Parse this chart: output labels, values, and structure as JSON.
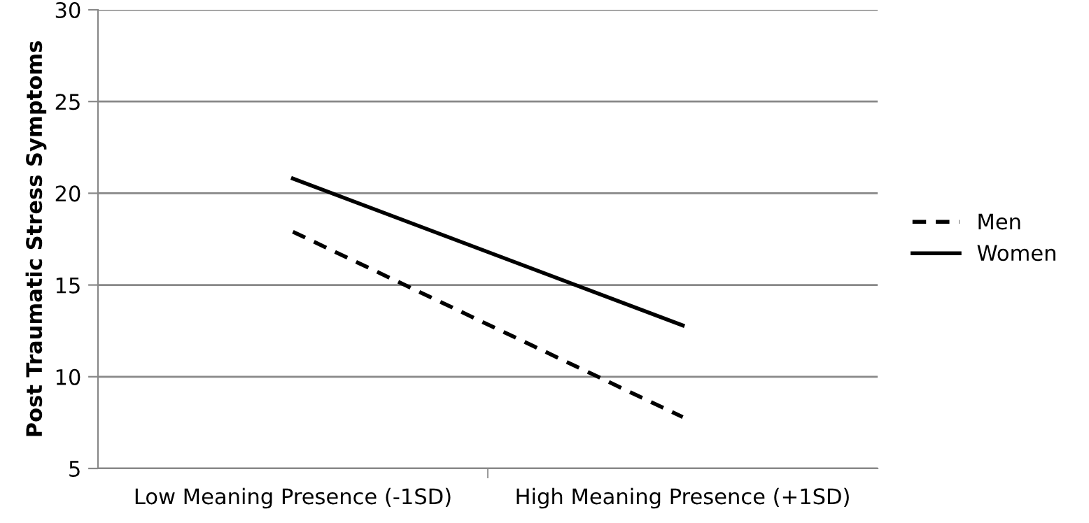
{
  "chart_data": {
    "type": "line",
    "ylabel": "Post Traumatic Stress Symptoms",
    "categories": [
      "Low Meaning Presence (-1SD)",
      "High Meaning Presence (+1SD)"
    ],
    "series": [
      {
        "name": "Men",
        "color": "#000000",
        "line_style": "dashed",
        "values": [
          17.9,
          7.8
        ]
      },
      {
        "name": "Women",
        "color": "#000000",
        "line_style": "solid",
        "values": [
          20.8,
          12.8
        ]
      }
    ],
    "ylim": [
      5,
      30
    ],
    "yticks": [
      5,
      10,
      15,
      20,
      25,
      30
    ],
    "grid": "y",
    "legend": "right",
    "marker": "none"
  }
}
